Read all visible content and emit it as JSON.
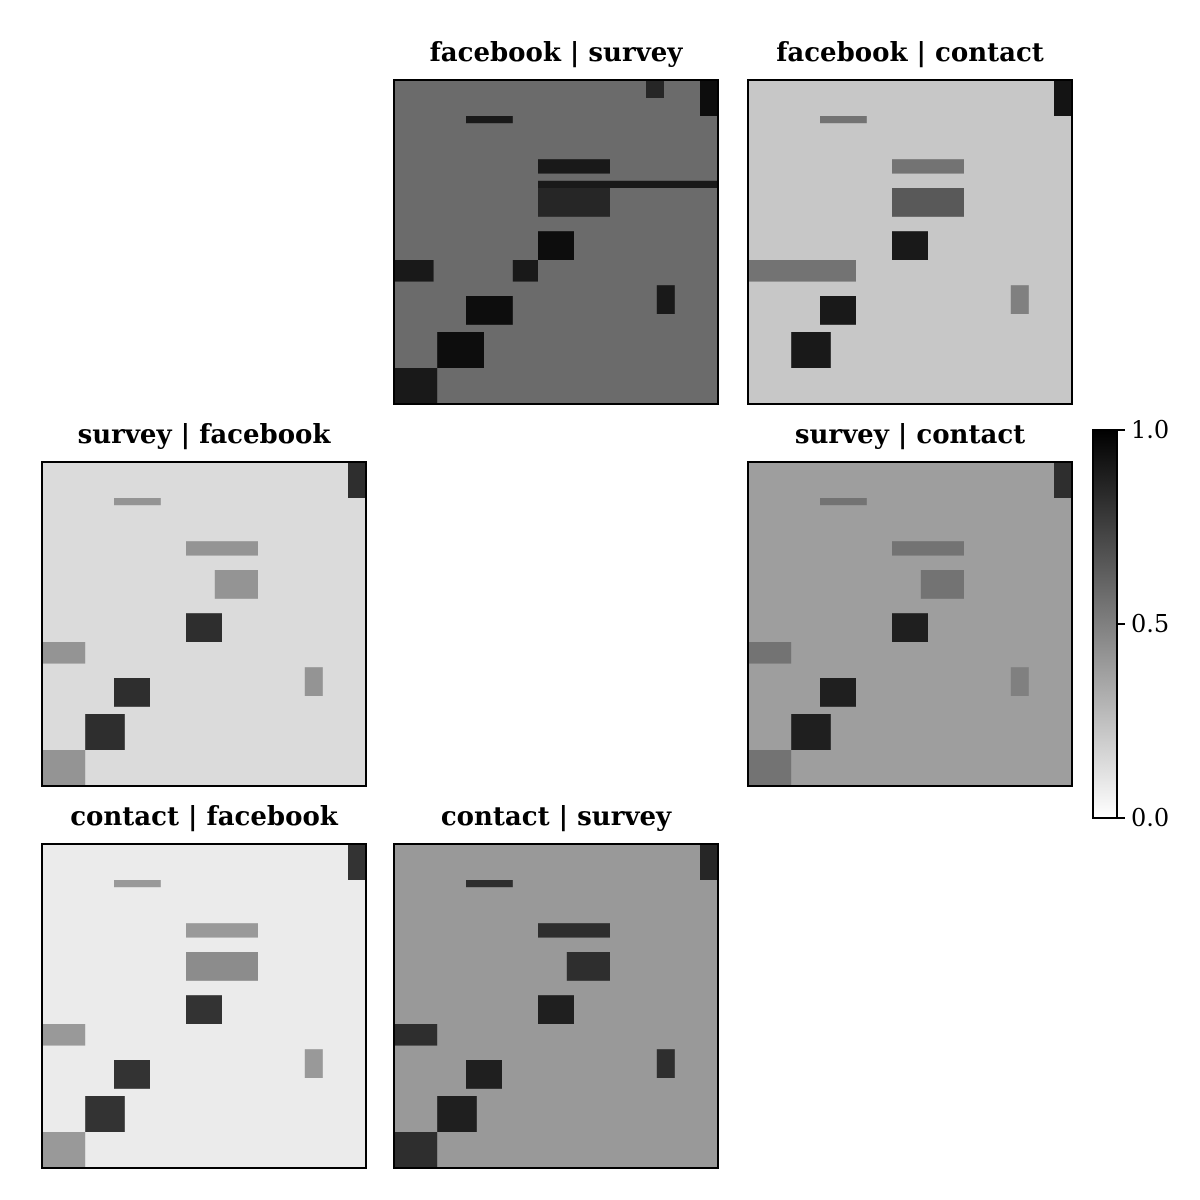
{
  "chart_data": {
    "type": "heatmap",
    "colormap": "gray_r",
    "grid": false,
    "colorbar": {
      "range": [
        0.0,
        1.0
      ],
      "ticks": [
        "0.0",
        "0.5",
        "1.0"
      ],
      "placement": "right"
    },
    "layout": "3x3 grid, diagonal empty",
    "panels": [
      {
        "title": "facebook | survey",
        "row": 0,
        "col": 1,
        "background": 0.58,
        "blocks": [
          {
            "r": [
              0,
              5
            ],
            "c": [
              0,
              5
            ],
            "v": 0.58
          },
          {
            "r": [
              5,
              9
            ],
            "c": [
              5,
              9
            ],
            "v": 0.58
          },
          {
            "r": [
              0,
              5
            ],
            "c": [
              5,
              9
            ],
            "v": 0.58
          },
          {
            "r": [
              0,
              0.5
            ],
            "c": [
              7,
              7.5
            ],
            "v": 0.85
          },
          {
            "r": [
              0,
              1
            ],
            "c": [
              8.5,
              9
            ],
            "v": 0.95
          },
          {
            "r": [
              1,
              1.2
            ],
            "c": [
              2,
              3.3
            ],
            "v": 0.9
          },
          {
            "r": [
              2.2,
              2.6
            ],
            "c": [
              4,
              6
            ],
            "v": 0.9
          },
          {
            "r": [
              2.8,
              3.0
            ],
            "c": [
              4,
              9
            ],
            "v": 0.9
          },
          {
            "r": [
              3.0,
              3.8
            ],
            "c": [
              4,
              6
            ],
            "v": 0.85
          },
          {
            "r": [
              4.2,
              5.0
            ],
            "c": [
              4,
              5
            ],
            "v": 0.95
          },
          {
            "r": [
              5,
              5.6
            ],
            "c": [
              0,
              1.1
            ],
            "v": 0.9
          },
          {
            "r": [
              5,
              5.6
            ],
            "c": [
              3.3,
              4
            ],
            "v": 0.9
          },
          {
            "r": [
              6,
              6.8
            ],
            "c": [
              2,
              3.3
            ],
            "v": 0.95
          },
          {
            "r": [
              7,
              8.0
            ],
            "c": [
              1.2,
              2.5
            ],
            "v": 0.95
          },
          {
            "r": [
              8,
              9
            ],
            "c": [
              0,
              1.2
            ],
            "v": 0.9
          },
          {
            "r": [
              5.7,
              6.5
            ],
            "c": [
              7.3,
              7.8
            ],
            "v": 0.9
          }
        ]
      },
      {
        "title": "facebook | contact",
        "row": 0,
        "col": 2,
        "background": 0.22,
        "blocks": [
          {
            "r": [
              0,
              1
            ],
            "c": [
              8.5,
              9
            ],
            "v": 0.92
          },
          {
            "r": [
              1,
              1.2
            ],
            "c": [
              2,
              3.3
            ],
            "v": 0.55
          },
          {
            "r": [
              2.2,
              2.6
            ],
            "c": [
              4,
              6
            ],
            "v": 0.55
          },
          {
            "r": [
              3.0,
              3.8
            ],
            "c": [
              4,
              6
            ],
            "v": 0.65
          },
          {
            "r": [
              4.2,
              5.0
            ],
            "c": [
              4,
              5
            ],
            "v": 0.9
          },
          {
            "r": [
              5,
              5.6
            ],
            "c": [
              0,
              3
            ],
            "v": 0.55
          },
          {
            "r": [
              6,
              6.8
            ],
            "c": [
              2,
              3
            ],
            "v": 0.9
          },
          {
            "r": [
              7,
              8.0
            ],
            "c": [
              1.2,
              2.3
            ],
            "v": 0.9
          },
          {
            "r": [
              5.7,
              6.5
            ],
            "c": [
              7.3,
              7.8
            ],
            "v": 0.5
          }
        ]
      },
      {
        "title": "survey | facebook",
        "row": 1,
        "col": 0,
        "background": 0.14,
        "blocks": [
          {
            "r": [
              0,
              1
            ],
            "c": [
              8.5,
              9
            ],
            "v": 0.82
          },
          {
            "r": [
              1,
              1.2
            ],
            "c": [
              2,
              3.3
            ],
            "v": 0.42
          },
          {
            "r": [
              2.2,
              2.6
            ],
            "c": [
              4,
              6
            ],
            "v": 0.42
          },
          {
            "r": [
              3.0,
              3.8
            ],
            "c": [
              4.8,
              6
            ],
            "v": 0.42
          },
          {
            "r": [
              4.2,
              5.0
            ],
            "c": [
              4,
              5
            ],
            "v": 0.82
          },
          {
            "r": [
              5,
              5.6
            ],
            "c": [
              0,
              1.2
            ],
            "v": 0.42
          },
          {
            "r": [
              6,
              6.8
            ],
            "c": [
              2,
              3
            ],
            "v": 0.82
          },
          {
            "r": [
              7,
              8.0
            ],
            "c": [
              1.2,
              2.3
            ],
            "v": 0.82
          },
          {
            "r": [
              8,
              9
            ],
            "c": [
              0,
              1.2
            ],
            "v": 0.42
          },
          {
            "r": [
              5.7,
              6.5
            ],
            "c": [
              7.3,
              7.8
            ],
            "v": 0.42
          }
        ]
      },
      {
        "title": "survey | contact",
        "row": 1,
        "col": 2,
        "background": 0.38,
        "blocks": [
          {
            "r": [
              0,
              1
            ],
            "c": [
              8.5,
              9
            ],
            "v": 0.82
          },
          {
            "r": [
              1,
              1.2
            ],
            "c": [
              2,
              3.3
            ],
            "v": 0.55
          },
          {
            "r": [
              2.2,
              2.6
            ],
            "c": [
              4,
              6
            ],
            "v": 0.55
          },
          {
            "r": [
              3.0,
              3.8
            ],
            "c": [
              4.8,
              6
            ],
            "v": 0.55
          },
          {
            "r": [
              4.2,
              5.0
            ],
            "c": [
              4,
              5
            ],
            "v": 0.88
          },
          {
            "r": [
              5,
              5.6
            ],
            "c": [
              0,
              1.2
            ],
            "v": 0.55
          },
          {
            "r": [
              6,
              6.8
            ],
            "c": [
              2,
              3
            ],
            "v": 0.88
          },
          {
            "r": [
              7,
              8.0
            ],
            "c": [
              1.2,
              2.3
            ],
            "v": 0.88
          },
          {
            "r": [
              8,
              9
            ],
            "c": [
              0,
              1.2
            ],
            "v": 0.55
          },
          {
            "r": [
              5.7,
              6.5
            ],
            "c": [
              7.3,
              7.8
            ],
            "v": 0.5
          }
        ]
      },
      {
        "title": "contact | facebook",
        "row": 2,
        "col": 0,
        "background": 0.08,
        "blocks": [
          {
            "r": [
              0,
              1
            ],
            "c": [
              8.5,
              9
            ],
            "v": 0.8
          },
          {
            "r": [
              1,
              1.2
            ],
            "c": [
              2,
              3.3
            ],
            "v": 0.4
          },
          {
            "r": [
              2.2,
              2.6
            ],
            "c": [
              4,
              6
            ],
            "v": 0.4
          },
          {
            "r": [
              3.0,
              3.8
            ],
            "c": [
              4,
              6
            ],
            "v": 0.45
          },
          {
            "r": [
              4.2,
              5.0
            ],
            "c": [
              4,
              5
            ],
            "v": 0.8
          },
          {
            "r": [
              5,
              5.6
            ],
            "c": [
              0,
              1.2
            ],
            "v": 0.4
          },
          {
            "r": [
              6,
              6.8
            ],
            "c": [
              2,
              3
            ],
            "v": 0.8
          },
          {
            "r": [
              7,
              8.0
            ],
            "c": [
              1.2,
              2.3
            ],
            "v": 0.8
          },
          {
            "r": [
              8,
              9
            ],
            "c": [
              0,
              1.2
            ],
            "v": 0.4
          },
          {
            "r": [
              5.7,
              6.5
            ],
            "c": [
              7.3,
              7.8
            ],
            "v": 0.4
          }
        ]
      },
      {
        "title": "contact | survey",
        "row": 2,
        "col": 1,
        "background": 0.4,
        "blocks": [
          {
            "r": [
              0,
              1
            ],
            "c": [
              8.5,
              9
            ],
            "v": 0.85
          },
          {
            "r": [
              1,
              1.2
            ],
            "c": [
              2,
              3.3
            ],
            "v": 0.82
          },
          {
            "r": [
              2.2,
              2.6
            ],
            "c": [
              4,
              6
            ],
            "v": 0.82
          },
          {
            "r": [
              3.0,
              3.8
            ],
            "c": [
              4.8,
              6
            ],
            "v": 0.82
          },
          {
            "r": [
              4.2,
              5.0
            ],
            "c": [
              4,
              5
            ],
            "v": 0.88
          },
          {
            "r": [
              5,
              5.6
            ],
            "c": [
              0,
              1.2
            ],
            "v": 0.82
          },
          {
            "r": [
              6,
              6.8
            ],
            "c": [
              2,
              3
            ],
            "v": 0.88
          },
          {
            "r": [
              7,
              8.0
            ],
            "c": [
              1.2,
              2.3
            ],
            "v": 0.88
          },
          {
            "r": [
              8,
              9
            ],
            "c": [
              0,
              1.2
            ],
            "v": 0.82
          },
          {
            "r": [
              5.7,
              6.5
            ],
            "c": [
              7.3,
              7.8
            ],
            "v": 0.82
          }
        ]
      }
    ]
  }
}
